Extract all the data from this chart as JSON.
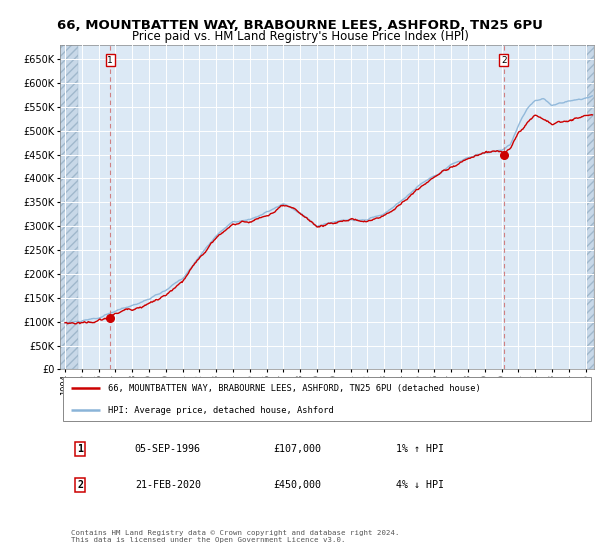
{
  "title1": "66, MOUNTBATTEN WAY, BRABOURNE LEES, ASHFORD, TN25 6PU",
  "title2": "Price paid vs. HM Land Registry's House Price Index (HPI)",
  "ylim": [
    0,
    680000
  ],
  "yticks": [
    0,
    50000,
    100000,
    150000,
    200000,
    250000,
    300000,
    350000,
    400000,
    450000,
    500000,
    550000,
    600000,
    650000
  ],
  "xlim_start": 1993.7,
  "xlim_end": 2025.5,
  "bg_color": "#dce9f5",
  "hpi_line_color": "#8ab4d8",
  "price_line_color": "#cc0000",
  "grid_color": "#ffffff",
  "vline1_x": 1996.68,
  "vline2_x": 2020.13,
  "point1_x": 1996.68,
  "point1_y": 107000,
  "point2_x": 2020.13,
  "point2_y": 450000,
  "legend_label1": "66, MOUNTBATTEN WAY, BRABOURNE LEES, ASHFORD, TN25 6PU (detached house)",
  "legend_label2": "HPI: Average price, detached house, Ashford",
  "table_row1": [
    "1",
    "05-SEP-1996",
    "£107,000",
    "1% ↑ HPI"
  ],
  "table_row2": [
    "2",
    "21-FEB-2020",
    "£450,000",
    "4% ↓ HPI"
  ],
  "footnote": "Contains HM Land Registry data © Crown copyright and database right 2024.\nThis data is licensed under the Open Government Licence v3.0.",
  "title_fontsize": 9.5,
  "hatch_color": "#c8d8e8"
}
